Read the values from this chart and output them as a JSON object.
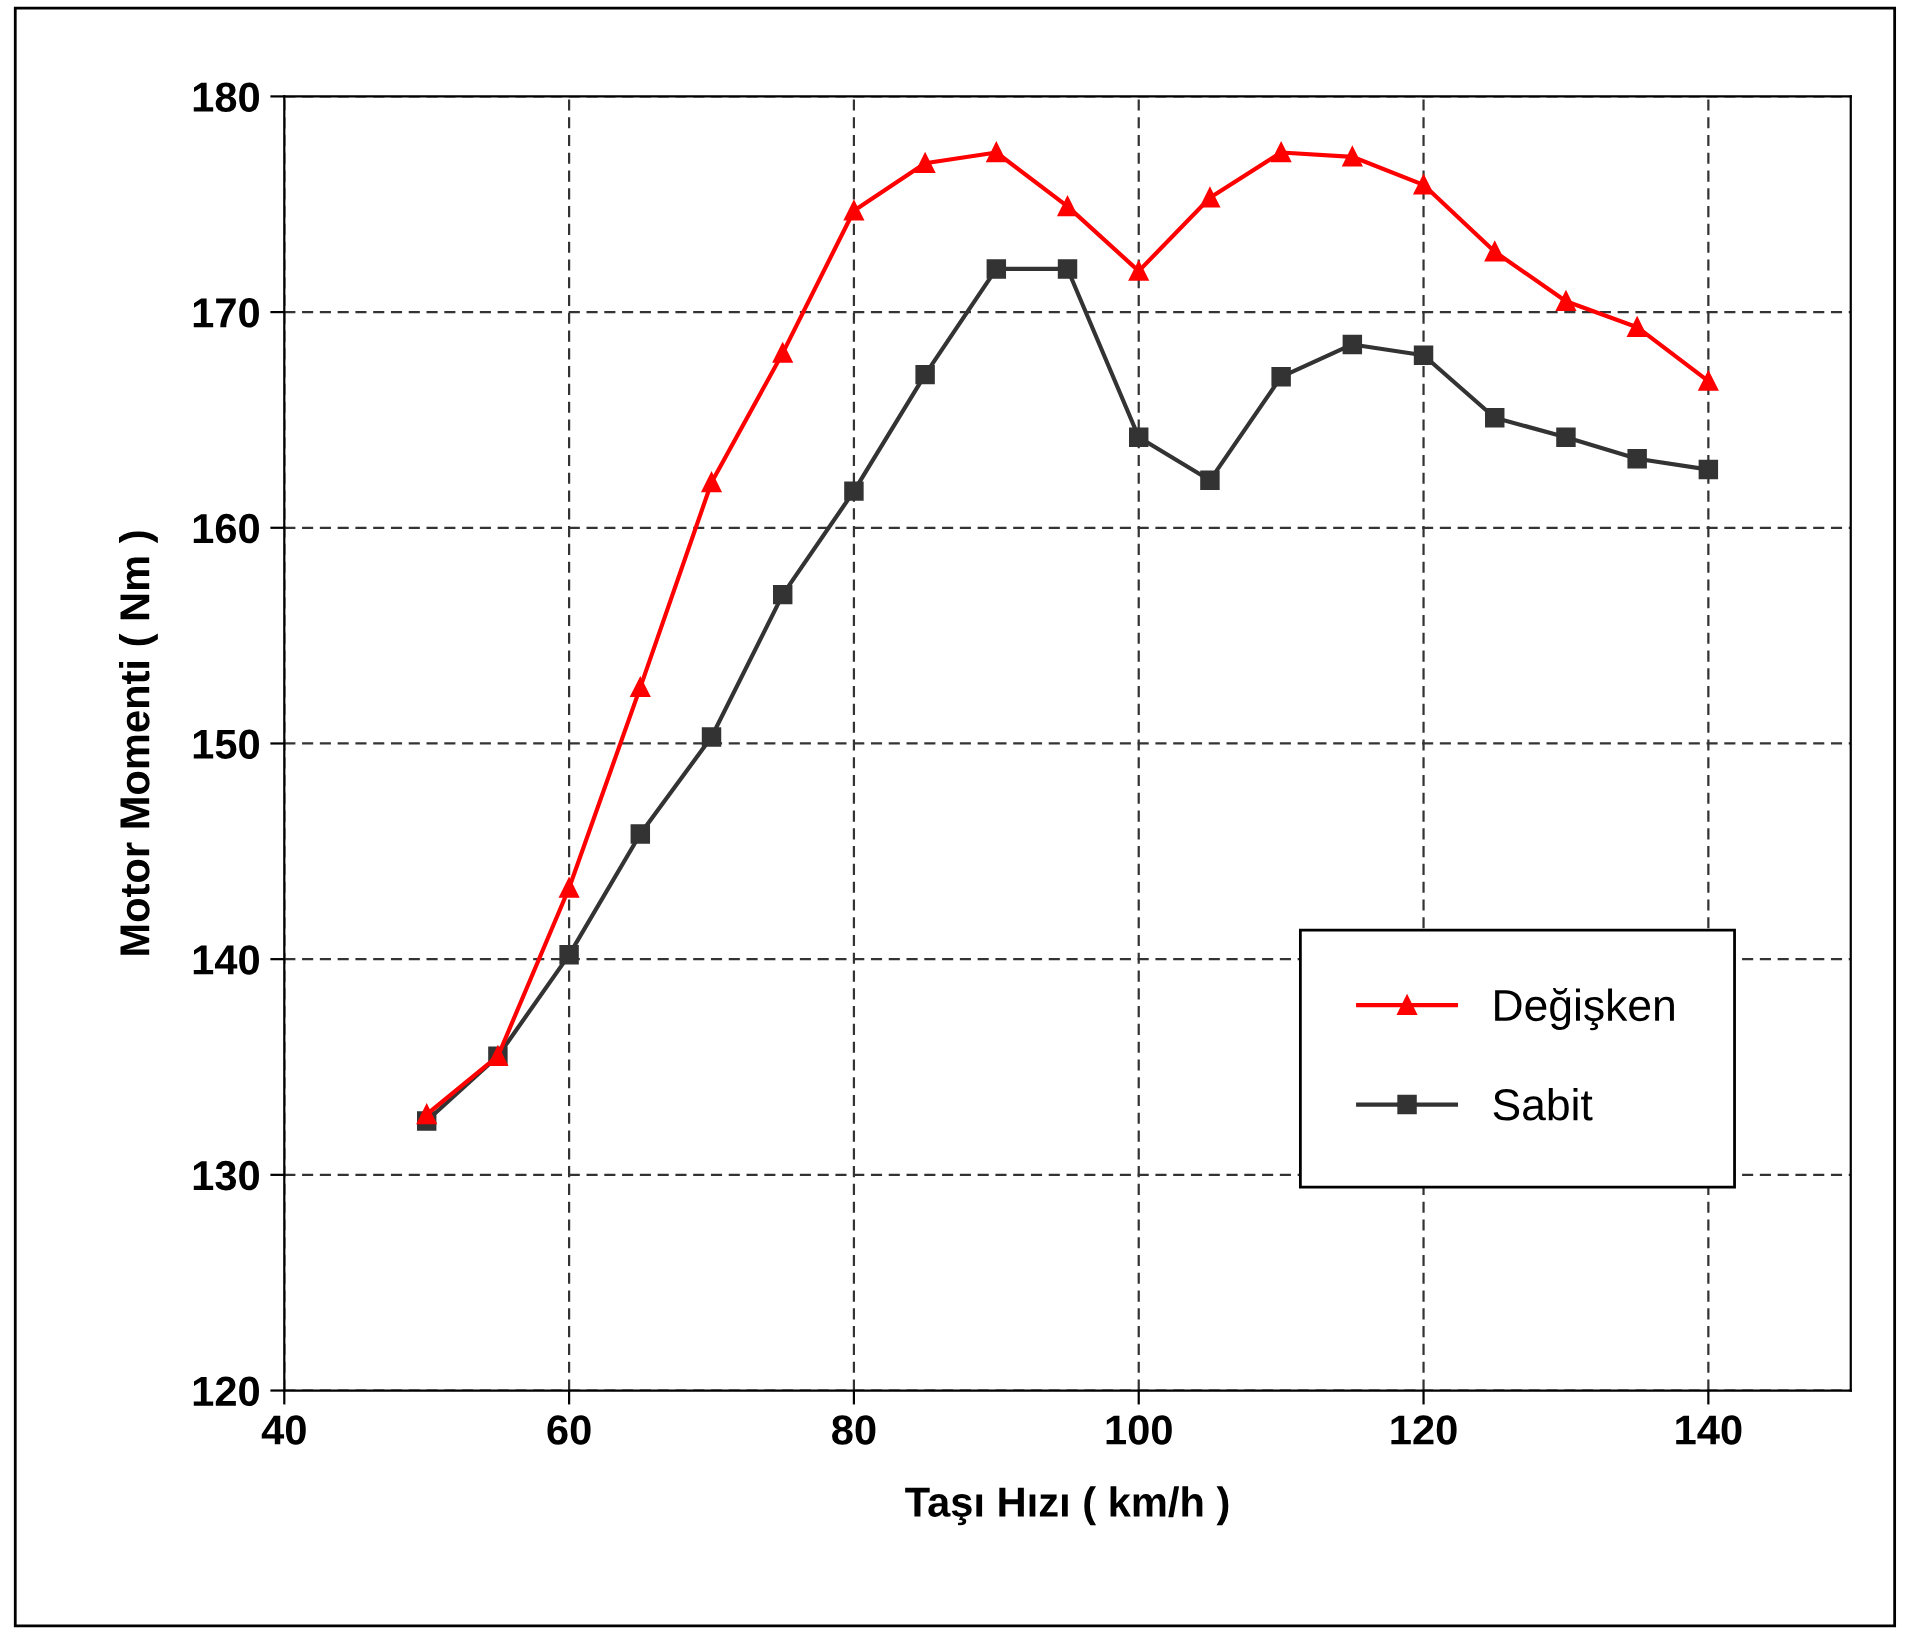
{
  "chart_data": {
    "type": "line",
    "xlabel": "Taşı Hızı ( km/h )",
    "ylabel": "Motor Momenti ( Nm )",
    "x": [
      50,
      55,
      60,
      65,
      70,
      75,
      80,
      85,
      90,
      95,
      100,
      105,
      110,
      115,
      120,
      125,
      130,
      135,
      140
    ],
    "series": [
      {
        "name": "Değişken",
        "color": "#ff0000",
        "marker": "triangle",
        "values": [
          132.8,
          135.5,
          143.3,
          152.6,
          162.1,
          168.1,
          174.7,
          176.9,
          177.4,
          174.9,
          171.9,
          175.3,
          177.4,
          177.2,
          175.9,
          172.8,
          170.5,
          169.3,
          166.8
        ]
      },
      {
        "name": "Sabit",
        "color": "#333333",
        "marker": "square",
        "values": [
          132.5,
          135.5,
          140.2,
          145.8,
          150.3,
          156.9,
          161.7,
          167.1,
          172.0,
          172.0,
          164.2,
          162.2,
          167.0,
          168.5,
          168.0,
          165.1,
          164.2,
          163.2,
          162.7
        ]
      }
    ],
    "xlim": [
      40,
      150
    ],
    "xticks": [
      40,
      60,
      80,
      100,
      120,
      140
    ],
    "ylim": [
      120,
      180
    ],
    "yticks": [
      120,
      130,
      140,
      150,
      160,
      170,
      180
    ],
    "grid": true,
    "legend": "bottom right",
    "line_style": "solid"
  }
}
